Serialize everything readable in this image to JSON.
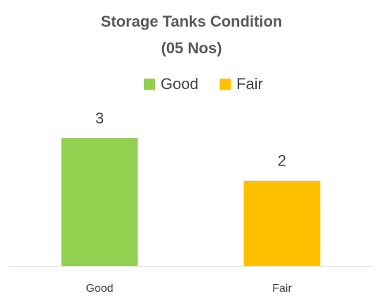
{
  "chart_data": {
    "type": "bar",
    "title": "Storage Tanks Condition",
    "subtitle": "(05 Nos)",
    "categories": [
      "Good",
      "Fair"
    ],
    "values": [
      3,
      2
    ],
    "colors": [
      "#92d050",
      "#ffc000"
    ],
    "legend": "top"
  }
}
